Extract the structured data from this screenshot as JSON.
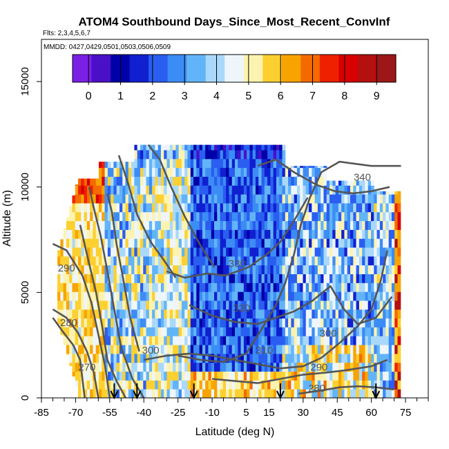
{
  "chart_data": {
    "type": "heatmap",
    "title": "ATOM4 Southbound Days_Since_Most_Recent_ConvInf",
    "flights_label": "Flts: 2,3,4,5,6,7",
    "dates_label": "MMDD: 0427,0429,0501,0503,0506,0509",
    "xlabel": "Latitude (deg N)",
    "ylabel": "Altitude (m)",
    "xlim": [
      -85,
      85
    ],
    "ylim": [
      0,
      17000
    ],
    "x_ticks": [
      -85,
      -70,
      -55,
      -40,
      -25,
      -10,
      5,
      15,
      30,
      45,
      60,
      75
    ],
    "x_minor_ticks": [
      -80,
      -75,
      -65,
      -60,
      -50,
      -45,
      -35,
      -30,
      -20,
      -15,
      -5,
      0,
      10,
      20,
      25,
      35,
      40,
      50,
      55,
      65,
      70,
      80,
      85
    ],
    "y_ticks": [
      0,
      5000,
      10000,
      15000
    ],
    "colorbar": {
      "range": [
        -0.5,
        9.6
      ],
      "ticks": [
        0,
        1,
        2,
        3,
        4,
        5,
        6,
        7,
        8,
        9
      ],
      "colors": [
        "#7a20e6",
        "#4a10c8",
        "#0000a8",
        "#1020d0",
        "#2a5ef0",
        "#3c8cf5",
        "#62b4f8",
        "#aad8fa",
        "#eef6fb",
        "#fdf3b0",
        "#fcd030",
        "#f8a400",
        "#f46a00",
        "#ee2000",
        "#d80000",
        "#b41010",
        "#9c1818"
      ]
    },
    "contours": [
      {
        "label": "270",
        "points": [
          [
            -66,
            0
          ],
          [
            -67,
            900
          ],
          [
            -68,
            1800
          ],
          [
            -71,
            2500
          ],
          [
            -76,
            3200
          ],
          [
            -80,
            3800
          ]
        ]
      },
      {
        "label": "280",
        "points": [
          [
            -60,
            0
          ],
          [
            -62,
            1200
          ],
          [
            -65,
            2200
          ],
          [
            -69,
            3100
          ],
          [
            -74,
            3800
          ],
          [
            -80,
            4200
          ]
        ]
      },
      {
        "label": "290",
        "points": [
          [
            -55,
            0
          ],
          [
            -57,
            1500
          ],
          [
            -60,
            3000
          ],
          [
            -63,
            4500
          ],
          [
            -67,
            5800
          ],
          [
            -74,
            7000
          ],
          [
            -80,
            7300
          ]
        ]
      },
      {
        "label": "300",
        "points": [
          [
            -48,
            0
          ],
          [
            -52,
            800
          ],
          [
            -56,
            1800
          ],
          [
            -58,
            3200
          ],
          [
            -61,
            5000
          ],
          [
            -65,
            6800
          ],
          [
            -68,
            8200
          ]
        ]
      },
      {
        "label": "310",
        "points": [
          [
            -40,
            0
          ],
          [
            -45,
            900
          ],
          [
            -50,
            2400
          ],
          [
            -53,
            4200
          ],
          [
            -56,
            6000
          ],
          [
            -59,
            7700
          ],
          [
            -62,
            9000
          ],
          [
            -64,
            10000
          ]
        ]
      },
      {
        "label": "320",
        "points": [
          [
            -42,
            2200
          ],
          [
            -46,
            3800
          ],
          [
            -49,
            5600
          ],
          [
            -52,
            7300
          ],
          [
            -54,
            8800
          ],
          [
            -56,
            9700
          ]
        ]
      },
      {
        "label": "330",
        "points": [
          [
            -26,
            5700
          ],
          [
            -31,
            6500
          ],
          [
            -37,
            7400
          ],
          [
            -43,
            8700
          ],
          [
            -47,
            10200
          ],
          [
            -51,
            11500
          ]
        ]
      },
      {
        "label": "340",
        "points": [
          [
            -9,
            6200
          ],
          [
            -15,
            7200
          ],
          [
            -22,
            8600
          ],
          [
            -28,
            10000
          ],
          [
            -33,
            11300
          ],
          [
            -38,
            12000
          ]
        ]
      },
      {
        "label": "300",
        "points": [
          [
            -40,
            1800
          ],
          [
            -30,
            2000
          ],
          [
            -20,
            2100
          ],
          [
            -10,
            2000
          ],
          [
            0,
            1800
          ],
          [
            10,
            1600
          ],
          [
            20,
            1400
          ],
          [
            30,
            1500
          ],
          [
            38,
            1900
          ],
          [
            46,
            2600
          ],
          [
            54,
            3400
          ],
          [
            60,
            4200
          ],
          [
            64,
            5500
          ],
          [
            67,
            7000
          ]
        ]
      },
      {
        "label": "310",
        "points": [
          [
            -25,
            2000
          ],
          [
            -15,
            1800
          ],
          [
            -5,
            1700
          ],
          [
            5,
            2100
          ],
          [
            12,
            3300
          ],
          [
            18,
            4400
          ],
          [
            22,
            5400
          ],
          [
            26,
            6800
          ],
          [
            29,
            8200
          ],
          [
            33,
            9500
          ],
          [
            38,
            10700
          ],
          [
            46,
            11200
          ],
          [
            60,
            11000
          ],
          [
            73,
            11000
          ]
        ]
      },
      {
        "label": "320",
        "points": [
          [
            -20,
            4400
          ],
          [
            -10,
            3900
          ],
          [
            0,
            3600
          ],
          [
            10,
            3500
          ],
          [
            18,
            3800
          ],
          [
            26,
            4100
          ],
          [
            34,
            4600
          ],
          [
            42,
            5300
          ],
          [
            48,
            4200
          ],
          [
            54,
            3500
          ],
          [
            62,
            3800
          ],
          [
            69,
            4800
          ]
        ]
      },
      {
        "label": "330",
        "points": [
          [
            -30,
            6000
          ],
          [
            -22,
            5700
          ],
          [
            -12,
            5900
          ],
          [
            -4,
            5800
          ],
          [
            6,
            6200
          ],
          [
            14,
            6800
          ],
          [
            20,
            7400
          ],
          [
            26,
            8400
          ],
          [
            32,
            9500
          ]
        ]
      },
      {
        "label": "340",
        "points": [
          [
            10,
            11000
          ],
          [
            18,
            11300
          ],
          [
            26,
            10700
          ],
          [
            36,
            10100
          ],
          [
            44,
            9800
          ],
          [
            52,
            9700
          ],
          [
            60,
            9800
          ],
          [
            68,
            10000
          ]
        ]
      },
      {
        "label": "290",
        "points": [
          [
            -10,
            900
          ],
          [
            0,
            800
          ],
          [
            10,
            700
          ],
          [
            20,
            900
          ],
          [
            30,
            1100
          ],
          [
            40,
            1200
          ],
          [
            48,
            1300
          ],
          [
            54,
            1400
          ],
          [
            60,
            1500
          ],
          [
            67,
            1800
          ]
        ]
      },
      {
        "label": "280",
        "points": [
          [
            28,
            200
          ],
          [
            38,
            350
          ],
          [
            46,
            500
          ],
          [
            54,
            550
          ],
          [
            62,
            500
          ],
          [
            70,
            400
          ]
        ]
      }
    ],
    "contour_labels": [
      {
        "text": "340",
        "x": 56,
        "y": 10300
      },
      {
        "text": "330",
        "x": 1,
        "y": 6200
      },
      {
        "text": "320",
        "x": 3,
        "y": 4100
      },
      {
        "text": "310",
        "x": 13,
        "y": 2100
      },
      {
        "text": "300",
        "x": -37,
        "y": 2100
      },
      {
        "text": "300",
        "x": 41,
        "y": 2900
      },
      {
        "text": "290",
        "x": 37,
        "y": 1300
      },
      {
        "text": "280",
        "x": 36,
        "y": 300
      },
      {
        "text": "290",
        "x": -74,
        "y": 6000
      },
      {
        "text": "280",
        "x": -73,
        "y": 3400
      },
      {
        "text": "270",
        "x": -65,
        "y": 1300
      }
    ],
    "flight_arrows_lat": [
      -53,
      -43,
      -18,
      20,
      62
    ]
  }
}
